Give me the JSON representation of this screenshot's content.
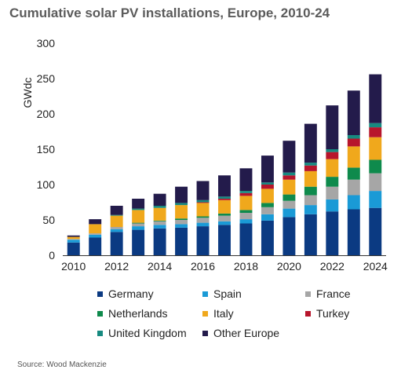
{
  "title": "Cumulative solar PV installations, Europe, 2010-24",
  "source": "Source:  Wood Mackenzie",
  "chart_data": {
    "type": "bar",
    "stacked": true,
    "title": "Cumulative solar PV installations, Europe, 2010-24",
    "xlabel": "",
    "ylabel": "GWdc",
    "ylim": [
      0,
      300
    ],
    "yticks": [
      0,
      50,
      100,
      150,
      200,
      250,
      300
    ],
    "categories": [
      "2010",
      "2011",
      "2012",
      "2013",
      "2014",
      "2015",
      "2016",
      "2017",
      "2018",
      "2019",
      "2020",
      "2021",
      "2022",
      "2023",
      "2024"
    ],
    "xtick_labels": [
      "2010",
      "",
      "2012",
      "",
      "2014",
      "",
      "2016",
      "",
      "2018",
      "",
      "2020",
      "",
      "2022",
      "",
      "2024"
    ],
    "grid": false,
    "legend_position": "bottom",
    "series": [
      {
        "name": "Germany",
        "color": "#0b3a82",
        "values": [
          18,
          25,
          33,
          36,
          38,
          39,
          41,
          43,
          45,
          49,
          54,
          58,
          62,
          65,
          67
        ]
      },
      {
        "name": "Spain",
        "color": "#1a9ad6",
        "values": [
          4,
          4,
          4,
          5,
          5,
          5,
          5,
          5,
          6,
          9,
          12,
          13,
          17,
          20,
          24
        ]
      },
      {
        "name": "France",
        "color": "#a6a6a6",
        "values": [
          1,
          2,
          3,
          4,
          5,
          6,
          7,
          8,
          9,
          10,
          11,
          14,
          18,
          22,
          25
        ]
      },
      {
        "name": "Netherlands",
        "color": "#0e8a4c",
        "values": [
          0,
          0,
          0,
          1,
          1,
          2,
          2,
          3,
          4,
          6,
          9,
          12,
          14,
          17,
          19
        ]
      },
      {
        "name": "Italy",
        "color": "#f0a81c",
        "values": [
          3,
          13,
          16,
          18,
          18,
          19,
          19,
          19,
          20,
          20,
          21,
          22,
          25,
          30,
          32
        ]
      },
      {
        "name": "Turkey",
        "color": "#b7152c",
        "values": [
          0,
          0,
          0,
          0,
          0,
          0,
          1,
          2,
          4,
          6,
          6,
          8,
          10,
          11,
          14
        ]
      },
      {
        "name": "United Kingdom",
        "color": "#178a80",
        "values": [
          0,
          0,
          1,
          2,
          3,
          3,
          3,
          3,
          3,
          3,
          4,
          4,
          4,
          5,
          6
        ]
      },
      {
        "name": "Other Europe",
        "color": "#231b4b",
        "values": [
          2,
          7,
          13,
          14,
          17,
          23,
          27,
          30,
          32,
          38,
          45,
          55,
          62,
          63,
          69
        ]
      }
    ]
  }
}
